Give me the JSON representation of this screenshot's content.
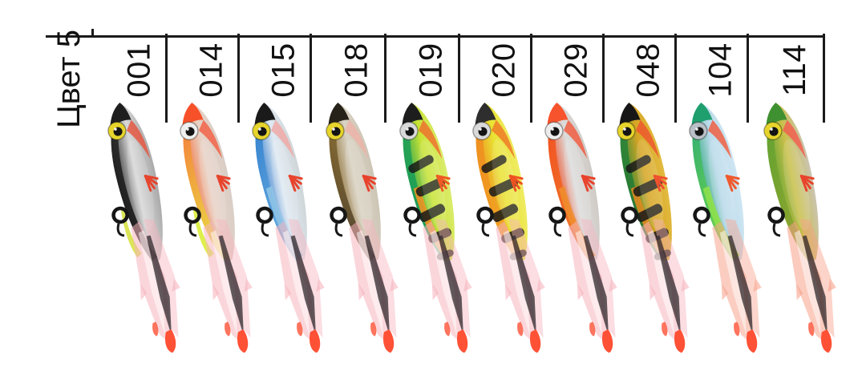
{
  "row_label": "Цвет 5",
  "columns": [
    {
      "code": "001",
      "pattern": "black-silver",
      "cap": "#1e1e1e",
      "back": "#2a2a2a",
      "back2": "#161616",
      "mid": "#d8d8d8",
      "hl": "#a9a9a9",
      "belly": "",
      "keel": "#d9e44e",
      "blush": "#e6503a",
      "eye": "#e7d42c",
      "fin": "#e6452e",
      "stripes": false,
      "stripe": "",
      "skirt": "#f6b4be",
      "tip": "#ff5136"
    },
    {
      "code": "014",
      "pattern": "red head / silver / chartreuse belly",
      "cap": "#f7512a",
      "back": "#f5713a",
      "back2": "#e9e83e",
      "mid": "#e8d2c6",
      "hl": "#d8cec6",
      "belly": "",
      "keel": "#dcee42",
      "blush": "#f25c40",
      "eye": "#efefef",
      "fin": "#e8432c",
      "stripes": false,
      "stripe": "",
      "skirt": "#f6b4be",
      "tip": "#ff5136"
    },
    {
      "code": "015",
      "pattern": "blue-silver",
      "cap": "#1a1a1a",
      "back": "#2b79cc",
      "back2": "#6fb4e2",
      "mid": "#dfe9f2",
      "hl": "#cfd6d8",
      "belly": "#8fc3e6",
      "keel": "",
      "blush": "#f0a6a2",
      "eye": "#e7d42c",
      "fin": "#e8432c",
      "stripes": false,
      "stripe": "",
      "skirt": "#f6b4be",
      "tip": "#ff5136"
    },
    {
      "code": "018",
      "pattern": "gold-silver",
      "cap": "#272219",
      "back": "#8c6e33",
      "back2": "#473b28",
      "mid": "#d9d2c2",
      "hl": "#cdc5b6",
      "belly": "",
      "keel": "",
      "blush": "#efb2a8",
      "eye": "#e7d42c",
      "fin": "#e8432c",
      "stripes": false,
      "stripe": "",
      "skirt": "#f6b4be",
      "tip": "#ff5136"
    },
    {
      "code": "019",
      "pattern": "green fire-tiger perch",
      "cap": "#1d1d1d",
      "back": "#28a352",
      "back2": "#13995c",
      "mid": "#c8e234",
      "hl": "#dcec6e",
      "belly": "#f09224",
      "keel": "",
      "blush": "#ef6c2a",
      "eye": "#d9d9d9",
      "fin": "#ef5a24",
      "stripes": true,
      "stripe": "#181818",
      "skirt": "#f6b4be",
      "tip": "#ff5136"
    },
    {
      "code": "020",
      "pattern": "yellow fire-tiger",
      "cap": "#2e2e2e",
      "back": "#ef8b1e",
      "back2": "#efa022",
      "mid": "#e9e233",
      "hl": "#efec64",
      "belly": "#efa022",
      "keel": "",
      "blush": "#ef7524",
      "eye": "#d9d9d9",
      "fin": "#ef5222",
      "stripes": true,
      "stripe": "#181818",
      "skirt": "#f6b4be",
      "tip": "#ff5136"
    },
    {
      "code": "029",
      "pattern": "red-orange / silver",
      "cap": "#f7532c",
      "back": "#f24a20",
      "back2": "#ef7e24",
      "mid": "#dcdcdc",
      "hl": "#cfcac4",
      "belly": "#ef8d2e",
      "keel": "",
      "blush": "#f2563a",
      "eye": "#ececec",
      "fin": "#e8432c",
      "stripes": false,
      "stripe": "",
      "skirt": "#f6b4be",
      "tip": "#ff5136"
    },
    {
      "code": "048",
      "pattern": "gold perch",
      "cap": "#161616",
      "back": "#2f8a3a",
      "back2": "#236e30",
      "mid": "#d7a524",
      "hl": "#e2bb40",
      "belly": "#e08a20",
      "keel": "",
      "blush": "#ef522e",
      "eye": "#e7d42c",
      "fin": "#ef522e",
      "stripes": true,
      "stripe": "#181818",
      "skirt": "#f6b4be",
      "tip": "#ff5136"
    },
    {
      "code": "104",
      "pattern": "teal / chartreuse / orange",
      "cap": "#1f9e6e",
      "back": "#2aa878",
      "back2": "#74dc3e",
      "mid": "#b9d9ea",
      "hl": "#cfe6f2",
      "belly": "#8ee04c",
      "keel": "",
      "blush": "#f2583a",
      "eye": "#b8bfc6",
      "fin": "#ef5a2e",
      "stripes": false,
      "stripe": "",
      "skirt": "#f8a48e",
      "tip": "#ff5136"
    },
    {
      "code": "114",
      "pattern": "green-gold / red",
      "cap": "#3f9030",
      "back": "#5aa232",
      "back2": "#93a42c",
      "mid": "#c9c04a",
      "hl": "#cbc4b4",
      "belly": "",
      "keel": "",
      "blush": "#f25a4e",
      "eye": "#e7d42c",
      "fin": "#e8432c",
      "stripes": false,
      "stripe": "",
      "skirt": "#f8a088",
      "tip": "#ff5136"
    }
  ],
  "style": {
    "line_color": "#1a1a1a",
    "text_color": "#111111",
    "background": "#ffffff",
    "skirt_highlight": "rgba(255,255,255,0.5)",
    "skirt_core": "rgba(45,40,44,0.75)",
    "eye_pupil": "#141414"
  }
}
